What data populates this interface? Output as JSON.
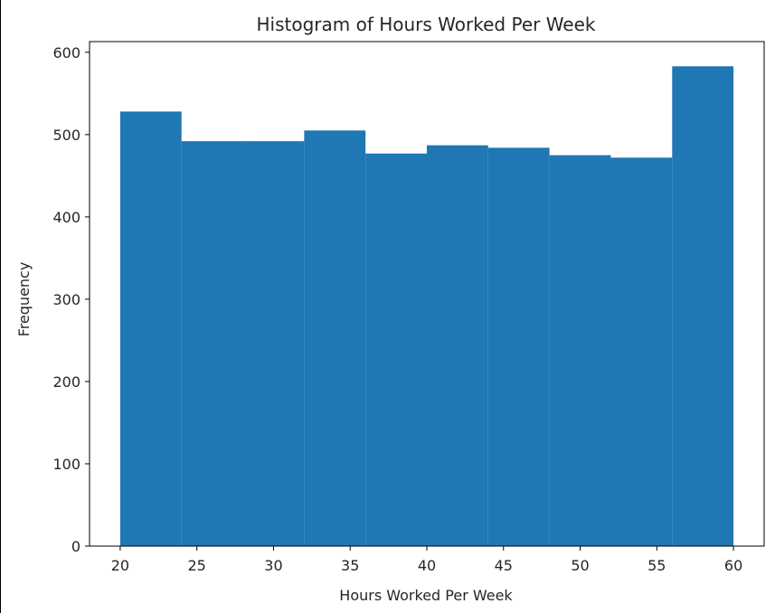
{
  "chart_data": {
    "type": "bar",
    "title": "Histogram of Hours Worked Per Week",
    "xlabel": "Hours Worked Per Week",
    "ylabel": "Frequency",
    "xlim": [
      18,
      62
    ],
    "ylim": [
      0,
      613
    ],
    "xticks": [
      20,
      25,
      30,
      35,
      40,
      45,
      50,
      55,
      60
    ],
    "yticks": [
      0,
      100,
      200,
      300,
      400,
      500,
      600
    ],
    "bin_edges": [
      20,
      24,
      28,
      32,
      36,
      40,
      44,
      48,
      52,
      56,
      60
    ],
    "values": [
      528,
      492,
      492,
      505,
      477,
      487,
      484,
      475,
      472,
      583
    ],
    "bar_color": "#1f77b4",
    "grid": false,
    "legend": "none"
  }
}
